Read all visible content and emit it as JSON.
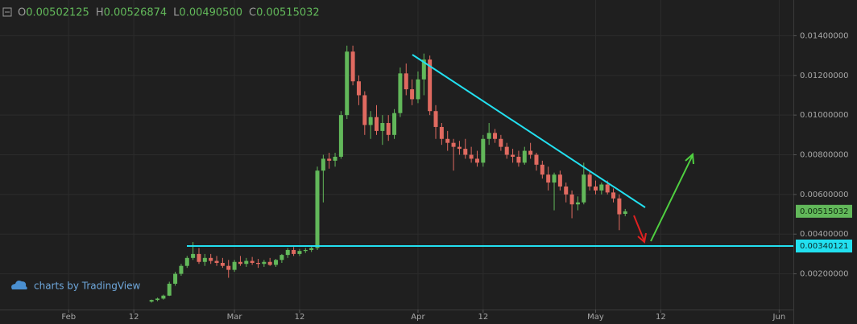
{
  "chart_data": {
    "type": "candlestick",
    "header": [
      {
        "label": "O",
        "value": "0.00502125"
      },
      {
        "label": "H",
        "value": "0.00526874"
      },
      {
        "label": "L",
        "value": "0.00490500"
      },
      {
        "label": "C",
        "value": "0.00515032"
      }
    ],
    "watermark": "charts by TradingView",
    "up_color": "#62b85a",
    "down_color": "#e06a60",
    "grid": true,
    "xlim": [
      20.4,
      154.4
    ],
    "xticks": [
      {
        "value": 32,
        "label": "Feb"
      },
      {
        "value": 43,
        "label": "12"
      },
      {
        "value": 60,
        "label": "Mar"
      },
      {
        "value": 71,
        "label": "12"
      },
      {
        "value": 91,
        "label": "Apr"
      },
      {
        "value": 102,
        "label": "12"
      },
      {
        "value": 121,
        "label": "May"
      },
      {
        "value": 132,
        "label": "12"
      },
      {
        "value": 152,
        "label": "Jun"
      }
    ],
    "ylim": [
      0.0002,
      0.0158
    ],
    "yticks": [
      {
        "value": 0.002,
        "label": "0.00200000"
      },
      {
        "value": 0.004,
        "label": "0.00400000"
      },
      {
        "value": 0.006,
        "label": "0.00600000"
      },
      {
        "value": 0.008,
        "label": "0.00800000"
      },
      {
        "value": 0.01,
        "label": "0.01000000"
      },
      {
        "value": 0.012,
        "label": "0.01200000"
      },
      {
        "value": 0.014,
        "label": "0.01400000"
      }
    ],
    "last_price": {
      "value": 0.00515032,
      "label": "0.00515032"
    },
    "horizontal_line": {
      "value": 0.00340121,
      "label": "0.00340121"
    },
    "x": [
      46,
      47,
      48,
      49,
      50,
      51,
      52,
      53,
      54,
      55,
      56,
      57,
      58,
      59,
      60,
      61,
      62,
      63,
      64,
      65,
      66,
      67,
      68,
      69,
      70,
      71,
      72,
      73,
      74,
      75,
      76,
      77,
      78,
      79,
      80,
      81,
      82,
      83,
      84,
      85,
      86,
      87,
      88,
      89,
      90,
      91,
      92,
      93,
      94,
      95,
      96,
      97,
      98,
      99,
      100,
      101,
      102,
      103,
      104,
      105,
      106,
      107,
      108,
      109,
      110,
      111,
      112,
      113,
      114,
      115,
      116,
      117,
      118,
      119,
      120,
      121,
      122,
      123,
      124,
      125,
      126
    ],
    "open": [
      0.0006,
      0.00068,
      0.00075,
      0.0009,
      0.0015,
      0.002,
      0.0024,
      0.0028,
      0.003,
      0.0026,
      0.0028,
      0.00265,
      0.00255,
      0.0024,
      0.0022,
      0.0026,
      0.0025,
      0.00265,
      0.00255,
      0.0025,
      0.0026,
      0.00245,
      0.0027,
      0.00295,
      0.0032,
      0.003,
      0.00315,
      0.0032,
      0.0033,
      0.0072,
      0.0078,
      0.0077,
      0.0079,
      0.01,
      0.0132,
      0.0117,
      0.011,
      0.0095,
      0.0099,
      0.0092,
      0.0096,
      0.009,
      0.0101,
      0.0121,
      0.0113,
      0.0108,
      0.0118,
      0.0128,
      0.0102,
      0.0094,
      0.0088,
      0.0086,
      0.0084,
      0.0083,
      0.008,
      0.0078,
      0.0076,
      0.0088,
      0.0091,
      0.0088,
      0.0084,
      0.008,
      0.0079,
      0.0076,
      0.0082,
      0.008,
      0.0075,
      0.007,
      0.0066,
      0.007,
      0.0064,
      0.006,
      0.0055,
      0.0056,
      0.007,
      0.0064,
      0.0062,
      0.0065,
      0.0061,
      0.0058,
      0.00502125
    ],
    "high": [
      0.0007,
      0.0008,
      0.00095,
      0.0016,
      0.0021,
      0.0025,
      0.0029,
      0.0036,
      0.0033,
      0.003,
      0.003,
      0.0029,
      0.0028,
      0.0027,
      0.0027,
      0.0029,
      0.0028,
      0.00285,
      0.00275,
      0.0027,
      0.0028,
      0.00275,
      0.003,
      0.0033,
      0.00335,
      0.00325,
      0.0033,
      0.0034,
      0.0074,
      0.008,
      0.0081,
      0.0081,
      0.0102,
      0.0135,
      0.0135,
      0.012,
      0.0112,
      0.0102,
      0.0105,
      0.01,
      0.01,
      0.0103,
      0.0124,
      0.0126,
      0.0118,
      0.0122,
      0.0131,
      0.013,
      0.0105,
      0.0096,
      0.0092,
      0.0088,
      0.0087,
      0.0088,
      0.0084,
      0.0082,
      0.009,
      0.0096,
      0.0093,
      0.009,
      0.0086,
      0.0083,
      0.0082,
      0.0084,
      0.0086,
      0.0081,
      0.0077,
      0.0074,
      0.0071,
      0.0072,
      0.0066,
      0.0062,
      0.0059,
      0.0076,
      0.0072,
      0.0067,
      0.0066,
      0.0067,
      0.0063,
      0.006,
      0.00526874
    ],
    "low": [
      0.00055,
      0.00062,
      0.0007,
      0.00088,
      0.0014,
      0.0019,
      0.0023,
      0.0027,
      0.0025,
      0.0024,
      0.0025,
      0.0024,
      0.0023,
      0.0018,
      0.0021,
      0.0024,
      0.00235,
      0.00245,
      0.0023,
      0.00235,
      0.0024,
      0.00235,
      0.00255,
      0.0028,
      0.0029,
      0.0029,
      0.00305,
      0.0031,
      0.0032,
      0.0056,
      0.0073,
      0.0074,
      0.0078,
      0.0098,
      0.0115,
      0.0105,
      0.009,
      0.0088,
      0.009,
      0.0085,
      0.0087,
      0.0088,
      0.0099,
      0.011,
      0.0105,
      0.0106,
      0.011,
      0.01,
      0.0088,
      0.0085,
      0.0082,
      0.0072,
      0.008,
      0.0078,
      0.0076,
      0.0074,
      0.0074,
      0.0085,
      0.0086,
      0.0082,
      0.0078,
      0.0076,
      0.0074,
      0.0075,
      0.0078,
      0.0072,
      0.0068,
      0.0062,
      0.0052,
      0.0062,
      0.0056,
      0.0048,
      0.0052,
      0.0055,
      0.0062,
      0.006,
      0.006,
      0.006,
      0.0056,
      0.0042,
      0.004905
    ],
    "close": [
      0.00068,
      0.00075,
      0.0009,
      0.0015,
      0.002,
      0.0024,
      0.0028,
      0.003,
      0.0026,
      0.0028,
      0.00265,
      0.00255,
      0.0024,
      0.0022,
      0.0026,
      0.0025,
      0.00265,
      0.00255,
      0.0025,
      0.0026,
      0.00245,
      0.0027,
      0.00295,
      0.0032,
      0.003,
      0.00315,
      0.0032,
      0.0033,
      0.0072,
      0.0078,
      0.0077,
      0.0079,
      0.01,
      0.0132,
      0.0117,
      0.011,
      0.0095,
      0.0099,
      0.0092,
      0.0096,
      0.009,
      0.0101,
      0.0121,
      0.0113,
      0.0108,
      0.0118,
      0.0128,
      0.0102,
      0.0094,
      0.0088,
      0.0086,
      0.0084,
      0.0083,
      0.008,
      0.0078,
      0.0076,
      0.0088,
      0.0091,
      0.0088,
      0.0084,
      0.008,
      0.0079,
      0.0076,
      0.0082,
      0.008,
      0.0075,
      0.007,
      0.0066,
      0.007,
      0.0064,
      0.006,
      0.0055,
      0.0056,
      0.007,
      0.0064,
      0.0062,
      0.0065,
      0.0061,
      0.0058,
      0.005,
      0.00515032
    ]
  }
}
